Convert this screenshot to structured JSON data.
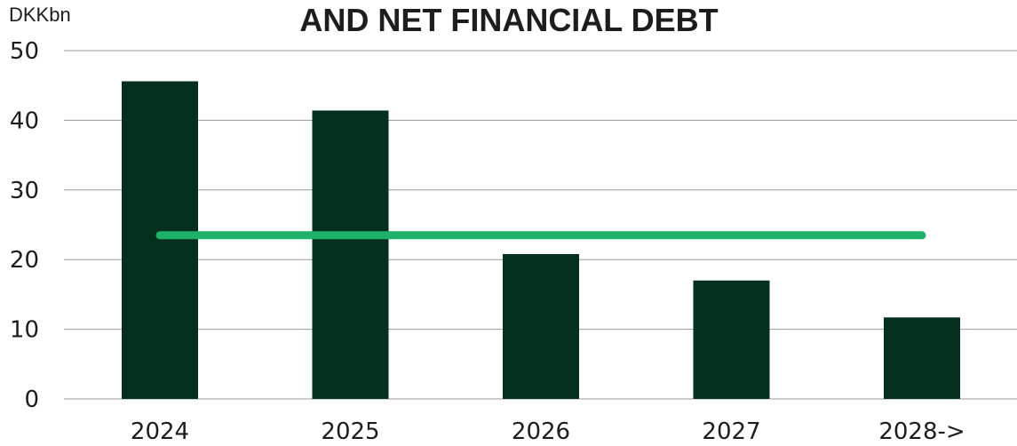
{
  "chart_data": {
    "type": "bar",
    "title": "AND NET FINANCIAL DEBT",
    "unit_label": "DKKbn",
    "categories": [
      "2024",
      "2025",
      "2026",
      "2027",
      "2028->"
    ],
    "series": [
      {
        "type": "bar",
        "values": [
          45.6,
          41.4,
          20.8,
          17.0,
          11.7
        ],
        "color": "#04301d"
      },
      {
        "type": "line",
        "values": [
          23.5,
          23.5,
          23.5,
          23.5,
          23.5
        ],
        "color": "#1db16a"
      }
    ],
    "ylim": [
      0,
      50
    ],
    "yticks": [
      "0",
      "10",
      "20",
      "30",
      "40",
      "50"
    ],
    "grid": true
  }
}
